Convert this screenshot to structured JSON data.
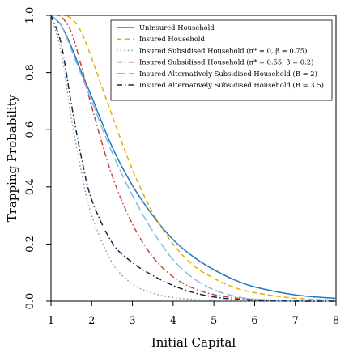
{
  "chart_data": {
    "type": "line",
    "xlabel": "Initial Capital",
    "ylabel": "Trapping Probability",
    "xlim": [
      1,
      8
    ],
    "ylim": [
      0,
      1
    ],
    "x_ticks": [
      "1",
      "2",
      "3",
      "4",
      "5",
      "6",
      "7",
      "8"
    ],
    "y_ticks": [
      "0.0",
      "0.2",
      "0.4",
      "0.6",
      "0.8",
      "1.0"
    ],
    "grid": false,
    "legend_position": "top-right",
    "x": [
      1.0,
      1.25,
      1.5,
      1.75,
      2.0,
      2.5,
      3.0,
      3.5,
      4.0,
      4.5,
      5.0,
      5.5,
      6.0,
      7.0,
      8.0
    ],
    "series": [
      {
        "name": "Uninsured Household",
        "color": "#1f77c4",
        "dash": "solid",
        "values": [
          1.0,
          0.965,
          0.89,
          0.8,
          0.715,
          0.54,
          0.405,
          0.3,
          0.215,
          0.155,
          0.11,
          0.075,
          0.05,
          0.022,
          0.01
        ]
      },
      {
        "name": "Insured Household",
        "color": "#e6ad00",
        "dash": "dashed",
        "values": [
          1.0,
          1.0,
          0.99,
          0.94,
          0.85,
          0.65,
          0.46,
          0.31,
          0.2,
          0.125,
          0.08,
          0.048,
          0.03,
          0.01,
          0.004
        ]
      },
      {
        "name": "Insured Subsidised Household (π* = 0, β = 0.75)",
        "color": "#999999",
        "dash": "dotted",
        "values": [
          1.0,
          0.87,
          0.64,
          0.45,
          0.3,
          0.135,
          0.06,
          0.028,
          0.013,
          0.006,
          0.003,
          0.0015,
          0.001,
          0.0,
          0.0
        ]
      },
      {
        "name": "Insured Subsidised Household (π* = 0.55, β = 0.2)",
        "color": "#cc4444",
        "dash": "dashdot",
        "values": [
          1.0,
          0.995,
          0.94,
          0.82,
          0.68,
          0.44,
          0.27,
          0.155,
          0.085,
          0.045,
          0.023,
          0.012,
          0.006,
          0.001,
          0.0
        ]
      },
      {
        "name": "Insured Alternatively Subsidised Household (B = 2)",
        "color": "#8ab8dc",
        "dash": "longdash",
        "values": [
          1.0,
          0.965,
          0.88,
          0.79,
          0.7,
          0.52,
          0.37,
          0.245,
          0.145,
          0.08,
          0.04,
          0.018,
          0.007,
          0.001,
          0.0
        ]
      },
      {
        "name": "Insured Alternatively Subsidised Household (B = 3.5)",
        "color": "#0d2b4a",
        "dash": "dashdot",
        "values": [
          1.0,
          0.9,
          0.69,
          0.5,
          0.355,
          0.205,
          0.135,
          0.09,
          0.055,
          0.03,
          0.015,
          0.007,
          0.003,
          0.0,
          0.0
        ]
      }
    ]
  }
}
